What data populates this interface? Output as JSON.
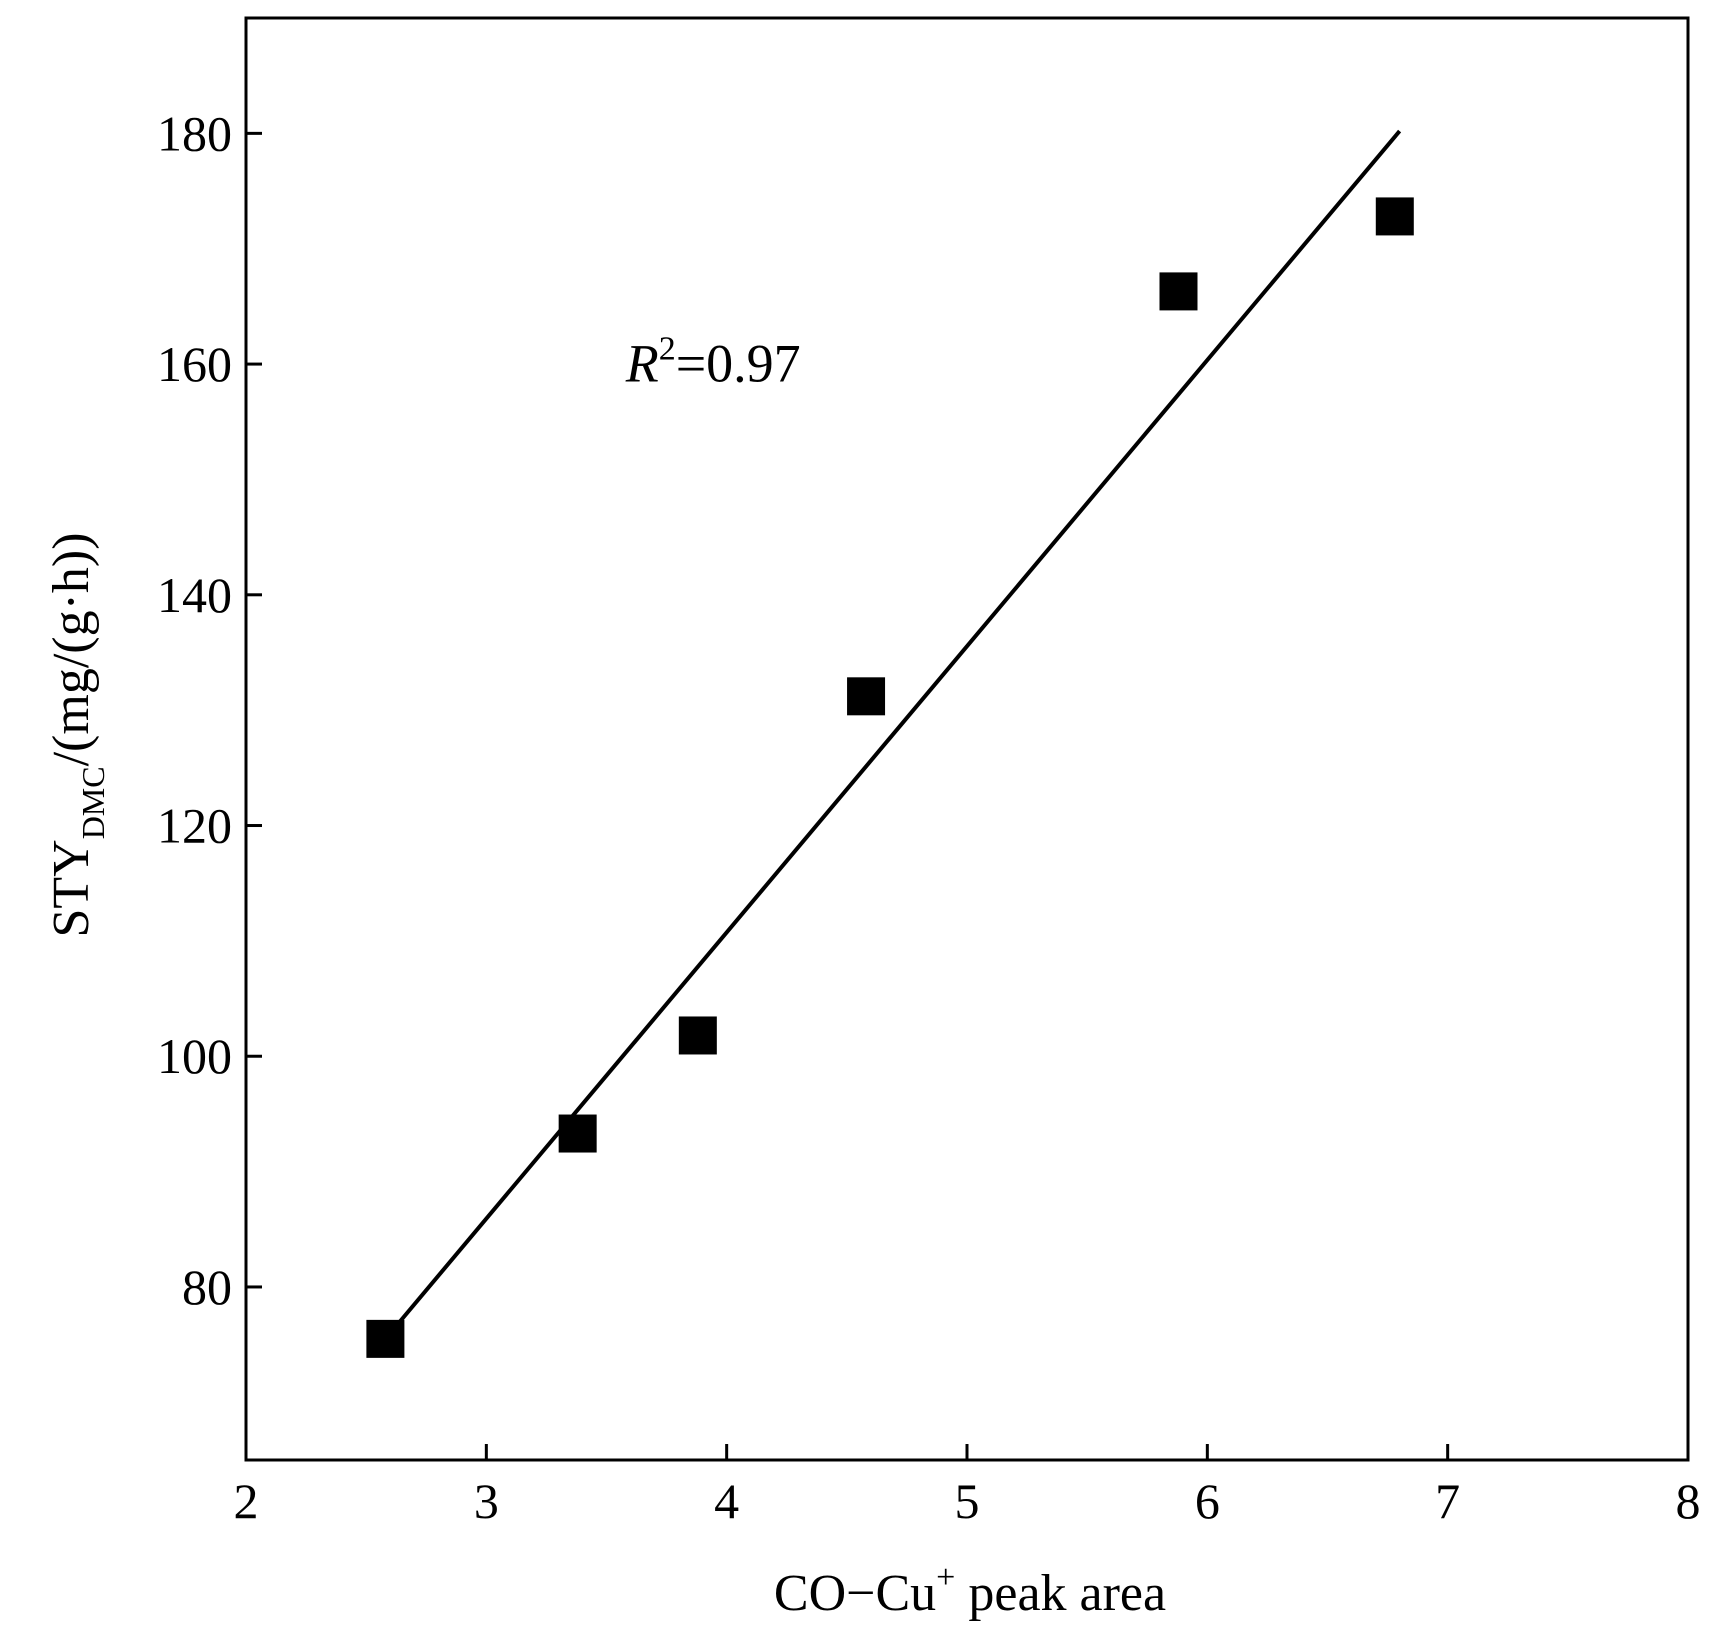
{
  "chart_data": {
    "type": "scatter",
    "title": "",
    "xlabel": {
      "main": "CO−Cu",
      "sup": "+",
      "rest": " peak area"
    },
    "ylabel": {
      "main": "STY",
      "sub": "DMC",
      "rest": "/(mg/(g·h))"
    },
    "xlim": [
      2,
      8
    ],
    "ylim": [
      65,
      190
    ],
    "xticks": [
      2,
      3,
      4,
      5,
      6,
      7,
      8
    ],
    "yticks": [
      80,
      100,
      120,
      140,
      160,
      180
    ],
    "grid": false,
    "legend": "none",
    "marker": "square",
    "marker_color": "#000000",
    "points": [
      {
        "x": 2.58,
        "y": 75.5
      },
      {
        "x": 3.38,
        "y": 93.3
      },
      {
        "x": 3.88,
        "y": 101.8
      },
      {
        "x": 4.58,
        "y": 131.2
      },
      {
        "x": 5.88,
        "y": 166.3
      },
      {
        "x": 6.78,
        "y": 172.8
      }
    ],
    "fit_line": {
      "x": [
        2.6,
        6.8
      ],
      "y": [
        76.0,
        180.2
      ],
      "color": "#000000"
    },
    "annotation": {
      "main": "R",
      "sup": "2",
      "rest": "=0.97",
      "x": 3.58,
      "y": 158.5
    }
  }
}
